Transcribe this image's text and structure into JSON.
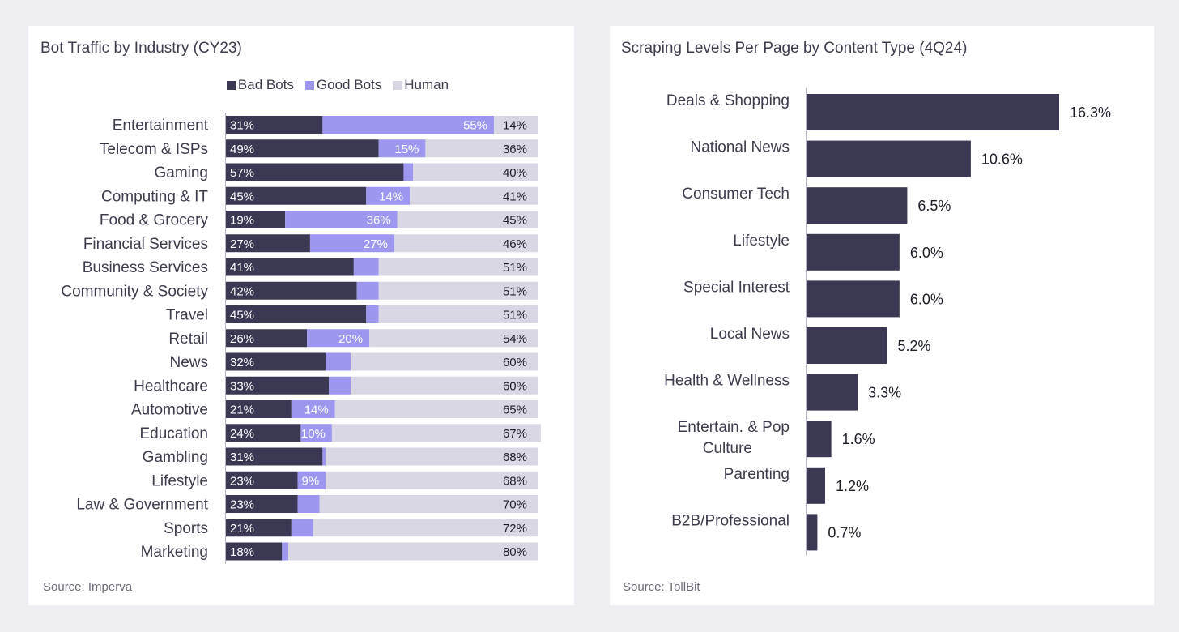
{
  "colors": {
    "bad_bots": "#3a3852",
    "good_bots": "#9d97f0",
    "human": "#d8d7e3",
    "scraping_bar": "#3a3852"
  },
  "chart_data": [
    {
      "type": "bar",
      "orientation": "horizontal",
      "stacked": true,
      "title": "Bot Traffic by Industry (CY23)",
      "source": "Source: Imperva",
      "legend_position": "top-center",
      "categories": [
        "Entertainment",
        "Telecom & ISPs",
        "Gaming",
        "Computing & IT",
        "Food & Grocery",
        "Financial Services",
        "Business Services",
        "Community & Society",
        "Travel",
        "Retail",
        "News",
        "Healthcare",
        "Automotive",
        "Education",
        "Gambling",
        "Lifestyle",
        "Law & Government",
        "Sports",
        "Marketing"
      ],
      "series": [
        {
          "name": "Bad Bots",
          "values": [
            31,
            49,
            57,
            45,
            19,
            27,
            41,
            42,
            45,
            26,
            32,
            33,
            21,
            24,
            31,
            23,
            23,
            21,
            18
          ]
        },
        {
          "name": "Good Bots",
          "values": [
            55,
            15,
            3,
            14,
            36,
            27,
            8,
            7,
            4,
            20,
            8,
            7,
            14,
            10,
            1,
            9,
            7,
            7,
            2
          ]
        },
        {
          "name": "Human",
          "values": [
            14,
            36,
            40,
            41,
            45,
            46,
            51,
            51,
            51,
            54,
            60,
            60,
            65,
            67,
            68,
            68,
            70,
            72,
            80
          ]
        }
      ],
      "good_bots_labeled": [
        true,
        true,
        false,
        true,
        true,
        true,
        false,
        false,
        false,
        true,
        false,
        false,
        true,
        true,
        false,
        true,
        false,
        false,
        false
      ],
      "xlim": [
        0,
        100
      ],
      "unit": "%"
    },
    {
      "type": "bar",
      "orientation": "horizontal",
      "title": "Scraping Levels Per Page by Content Type (4Q24)",
      "source": "Source: TollBit",
      "categories": [
        "Deals & Shopping",
        "National News",
        "Consumer Tech",
        "Lifestyle",
        "Special Interest",
        "Local News",
        "Health & Wellness",
        "Entertain. & Pop Culture",
        "Parenting",
        "B2B/Professional"
      ],
      "category_lines": [
        [
          "Deals & Shopping"
        ],
        [
          "National News"
        ],
        [
          "Consumer Tech"
        ],
        [
          "Lifestyle"
        ],
        [
          "Special Interest"
        ],
        [
          "Local News"
        ],
        [
          "Health & Wellness"
        ],
        [
          "Entertain. & Pop",
          "Culture"
        ],
        [
          "Parenting"
        ],
        [
          "B2B/Professional"
        ]
      ],
      "values": [
        16.3,
        10.6,
        6.5,
        6.0,
        6.0,
        5.2,
        3.3,
        1.6,
        1.2,
        0.7
      ],
      "value_labels": [
        "16.3%",
        "10.6%",
        "6.5%",
        "6.0%",
        "6.0%",
        "5.2%",
        "3.3%",
        "1.6%",
        "1.2%",
        "0.7%"
      ],
      "xlim": [
        0,
        16.3
      ],
      "unit": "%"
    }
  ]
}
